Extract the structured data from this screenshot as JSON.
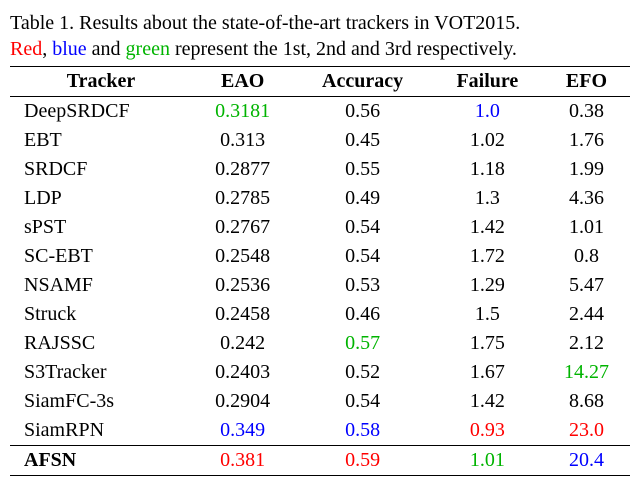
{
  "caption": {
    "line1_a": "Table 1. Results about the state-of-the-art trackers in VOT2015.",
    "word_red": "Red",
    "sep1": ", ",
    "word_blue": "blue",
    "sep2": " and ",
    "word_green": "green",
    "rest": " represent the 1st, 2nd and 3rd respectively."
  },
  "colors": {
    "red": "#ff0000",
    "blue": "#0000ff",
    "green": "#00b400",
    "black": "#000000"
  },
  "headers": {
    "tracker": "Tracker",
    "eao": "EAO",
    "accuracy": "Accuracy",
    "failure": "Failure",
    "efo": "EFO"
  },
  "rows": [
    {
      "tracker": "DeepSRDCF",
      "eao": {
        "v": "0.3181",
        "c": "green"
      },
      "accuracy": {
        "v": "0.56",
        "c": "black"
      },
      "failure": {
        "v": "1.0",
        "c": "blue"
      },
      "efo": {
        "v": "0.38",
        "c": "black"
      },
      "bold": false
    },
    {
      "tracker": "EBT",
      "eao": {
        "v": "0.313",
        "c": "black"
      },
      "accuracy": {
        "v": "0.45",
        "c": "black"
      },
      "failure": {
        "v": "1.02",
        "c": "black"
      },
      "efo": {
        "v": "1.76",
        "c": "black"
      },
      "bold": false
    },
    {
      "tracker": "SRDCF",
      "eao": {
        "v": "0.2877",
        "c": "black"
      },
      "accuracy": {
        "v": "0.55",
        "c": "black"
      },
      "failure": {
        "v": "1.18",
        "c": "black"
      },
      "efo": {
        "v": "1.99",
        "c": "black"
      },
      "bold": false
    },
    {
      "tracker": "LDP",
      "eao": {
        "v": "0.2785",
        "c": "black"
      },
      "accuracy": {
        "v": "0.49",
        "c": "black"
      },
      "failure": {
        "v": "1.3",
        "c": "black"
      },
      "efo": {
        "v": "4.36",
        "c": "black"
      },
      "bold": false
    },
    {
      "tracker": "sPST",
      "eao": {
        "v": "0.2767",
        "c": "black"
      },
      "accuracy": {
        "v": "0.54",
        "c": "black"
      },
      "failure": {
        "v": "1.42",
        "c": "black"
      },
      "efo": {
        "v": "1.01",
        "c": "black"
      },
      "bold": false
    },
    {
      "tracker": "SC-EBT",
      "eao": {
        "v": "0.2548",
        "c": "black"
      },
      "accuracy": {
        "v": "0.54",
        "c": "black"
      },
      "failure": {
        "v": "1.72",
        "c": "black"
      },
      "efo": {
        "v": "0.8",
        "c": "black"
      },
      "bold": false
    },
    {
      "tracker": "NSAMF",
      "eao": {
        "v": "0.2536",
        "c": "black"
      },
      "accuracy": {
        "v": "0.53",
        "c": "black"
      },
      "failure": {
        "v": "1.29",
        "c": "black"
      },
      "efo": {
        "v": "5.47",
        "c": "black"
      },
      "bold": false
    },
    {
      "tracker": "Struck",
      "eao": {
        "v": "0.2458",
        "c": "black"
      },
      "accuracy": {
        "v": "0.46",
        "c": "black"
      },
      "failure": {
        "v": "1.5",
        "c": "black"
      },
      "efo": {
        "v": "2.44",
        "c": "black"
      },
      "bold": false
    },
    {
      "tracker": "RAJSSC",
      "eao": {
        "v": "0.242",
        "c": "black"
      },
      "accuracy": {
        "v": "0.57",
        "c": "green"
      },
      "failure": {
        "v": "1.75",
        "c": "black"
      },
      "efo": {
        "v": "2.12",
        "c": "black"
      },
      "bold": false
    },
    {
      "tracker": "S3Tracker",
      "eao": {
        "v": "0.2403",
        "c": "black"
      },
      "accuracy": {
        "v": "0.52",
        "c": "black"
      },
      "failure": {
        "v": "1.67",
        "c": "black"
      },
      "efo": {
        "v": "14.27",
        "c": "green"
      },
      "bold": false
    },
    {
      "tracker": "SiamFC-3s",
      "eao": {
        "v": "0.2904",
        "c": "black"
      },
      "accuracy": {
        "v": "0.54",
        "c": "black"
      },
      "failure": {
        "v": "1.42",
        "c": "black"
      },
      "efo": {
        "v": "8.68",
        "c": "black"
      },
      "bold": false
    },
    {
      "tracker": "SiamRPN",
      "eao": {
        "v": "0.349",
        "c": "blue"
      },
      "accuracy": {
        "v": "0.58",
        "c": "blue"
      },
      "failure": {
        "v": "0.93",
        "c": "red"
      },
      "efo": {
        "v": "23.0",
        "c": "red"
      },
      "bold": false
    },
    {
      "tracker": "AFSN",
      "eao": {
        "v": "0.381",
        "c": "red"
      },
      "accuracy": {
        "v": "0.59",
        "c": "red"
      },
      "failure": {
        "v": "1.01",
        "c": "green"
      },
      "efo": {
        "v": "20.4",
        "c": "blue"
      },
      "bold": true
    }
  ]
}
